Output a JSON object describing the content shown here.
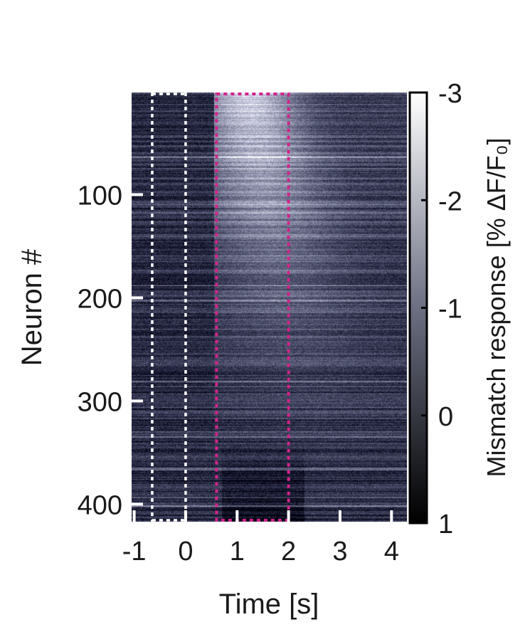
{
  "chart_data": {
    "type": "heatmap",
    "xlabel": "Time [s]",
    "ylabel": "Neuron #",
    "xlim": [
      -1.05,
      4.3
    ],
    "ylim": [
      1,
      417
    ],
    "n_neurons": 417,
    "x_ticks": [
      {
        "value": -1,
        "label": "-1"
      },
      {
        "value": 0,
        "label": "0"
      },
      {
        "value": 1,
        "label": "1"
      },
      {
        "value": 2,
        "label": "2"
      },
      {
        "value": 3,
        "label": "3"
      },
      {
        "value": 4,
        "label": "4"
      }
    ],
    "y_ticks": [
      {
        "value": 100,
        "label": "100"
      },
      {
        "value": 200,
        "label": "200"
      },
      {
        "value": 300,
        "label": "300"
      },
      {
        "value": 400,
        "label": "400"
      }
    ],
    "colorbar": {
      "label": "Mismatch response [% ΔF/F₀]",
      "range": [
        -3,
        1
      ],
      "ticks": [
        {
          "value": -3,
          "label": "-3"
        },
        {
          "value": -2,
          "label": "-2"
        },
        {
          "value": -1,
          "label": "-1"
        },
        {
          "value": 0,
          "label": "0"
        },
        {
          "value": 1,
          "label": "1"
        }
      ],
      "colors": [
        "#ffffff",
        "#6b6f82",
        "#000000"
      ]
    },
    "annotations": [
      {
        "type": "window",
        "name": "baseline",
        "x_start": -0.65,
        "x_end": 0,
        "style": "dotted",
        "color": "#ffffff"
      },
      {
        "type": "window",
        "name": "response",
        "x_start": 0.6,
        "x_end": 2,
        "style": "dotted",
        "color": "#d0248a"
      }
    ]
  }
}
